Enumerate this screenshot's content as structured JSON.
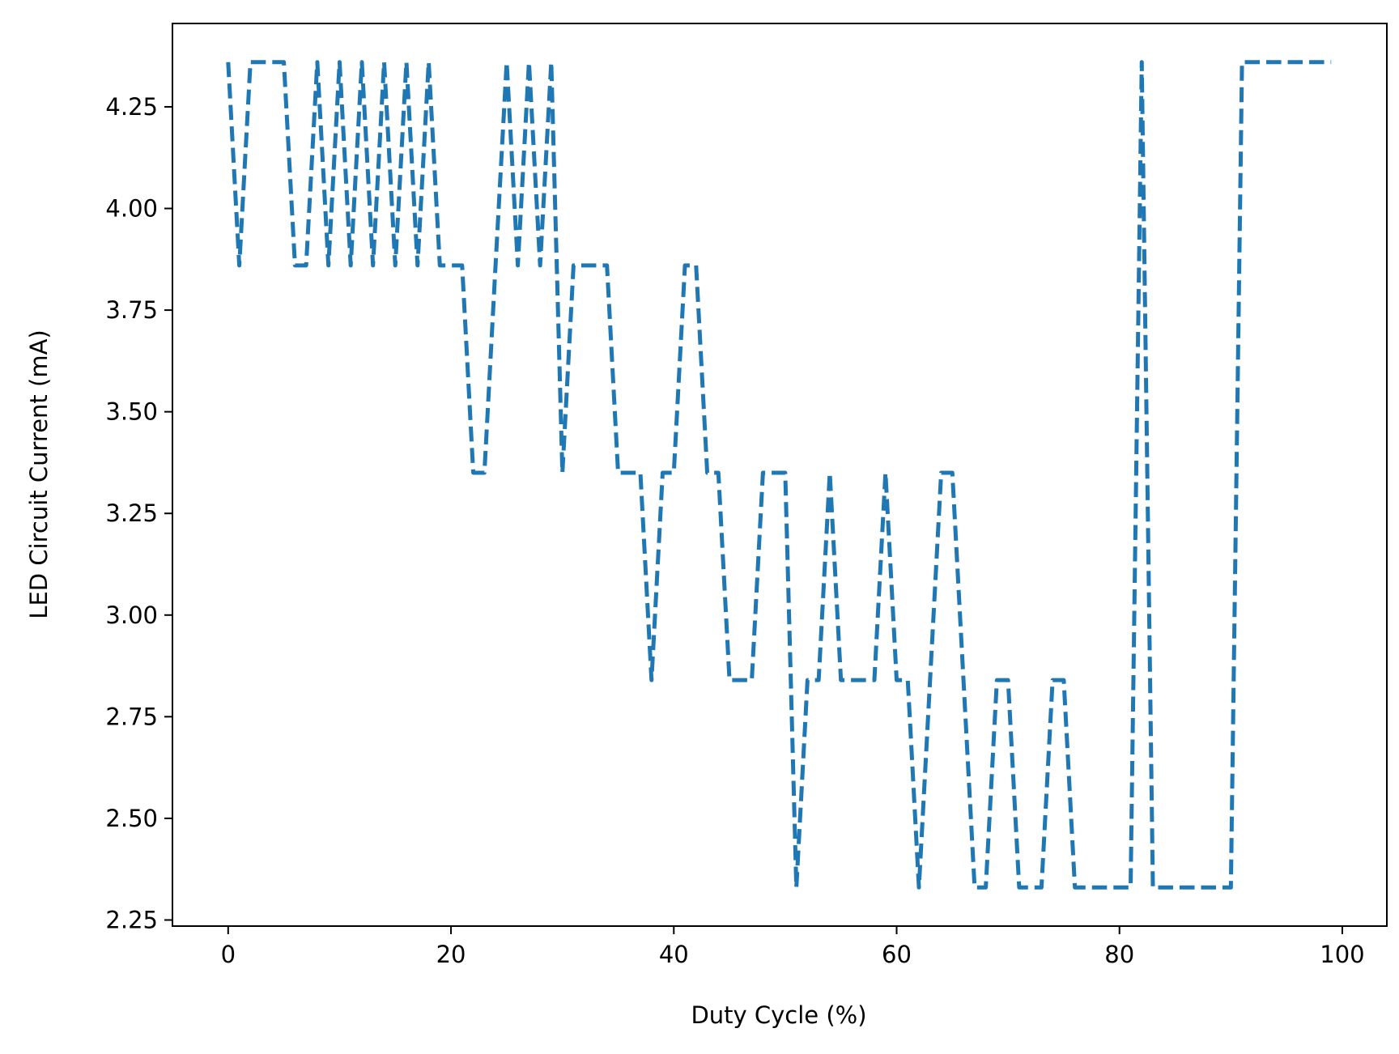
{
  "chart_data": {
    "type": "line",
    "title": "",
    "xlabel": "Duty Cycle (%)",
    "ylabel": "LED Circuit Current (mA)",
    "xlim": [
      -5,
      104
    ],
    "ylim": [
      2.235,
      4.455
    ],
    "x_ticks": [
      0,
      20,
      40,
      60,
      80,
      100
    ],
    "x_tick_labels": [
      "0",
      "20",
      "40",
      "60",
      "80",
      "100"
    ],
    "y_ticks": [
      2.25,
      2.5,
      2.75,
      3.0,
      3.25,
      3.5,
      3.75,
      4.0,
      4.25
    ],
    "y_tick_labels": [
      "2.25",
      "2.50",
      "2.75",
      "3.00",
      "3.25",
      "3.50",
      "3.75",
      "4.00",
      "4.25"
    ],
    "grid": false,
    "legend": "none",
    "series": [
      {
        "color": "#1f77b4",
        "line_style": "dashed",
        "x": [
          0,
          1,
          2,
          3,
          4,
          5,
          6,
          7,
          8,
          9,
          10,
          11,
          12,
          13,
          14,
          15,
          16,
          17,
          18,
          19,
          20,
          21,
          22,
          23,
          24,
          25,
          26,
          27,
          28,
          29,
          30,
          31,
          32,
          33,
          34,
          35,
          36,
          37,
          38,
          39,
          40,
          41,
          42,
          43,
          44,
          45,
          46,
          47,
          48,
          49,
          50,
          51,
          52,
          53,
          54,
          55,
          56,
          57,
          58,
          59,
          60,
          61,
          62,
          63,
          64,
          65,
          66,
          67,
          68,
          69,
          70,
          71,
          72,
          73,
          74,
          75,
          76,
          77,
          78,
          79,
          80,
          81,
          82,
          83,
          84,
          85,
          86,
          87,
          88,
          89,
          90,
          91,
          92,
          93,
          94,
          95,
          96,
          97,
          98,
          99
        ],
        "y": [
          4.36,
          3.86,
          4.36,
          4.36,
          4.36,
          4.36,
          3.86,
          3.86,
          4.36,
          3.86,
          4.36,
          3.86,
          4.36,
          3.86,
          4.36,
          3.86,
          4.36,
          3.86,
          4.36,
          3.86,
          3.86,
          3.86,
          3.35,
          3.35,
          3.86,
          4.36,
          3.86,
          4.36,
          3.86,
          4.36,
          3.35,
          3.86,
          3.86,
          3.86,
          3.86,
          3.35,
          3.35,
          3.35,
          2.84,
          3.35,
          3.35,
          3.86,
          3.86,
          3.35,
          3.35,
          2.84,
          2.84,
          2.84,
          3.35,
          3.35,
          3.35,
          2.33,
          2.84,
          2.84,
          3.35,
          2.84,
          2.84,
          2.84,
          2.84,
          3.35,
          2.84,
          2.84,
          2.33,
          2.84,
          3.35,
          3.35,
          2.84,
          2.33,
          2.33,
          2.84,
          2.84,
          2.33,
          2.33,
          2.33,
          2.84,
          2.84,
          2.33,
          2.33,
          2.33,
          2.33,
          2.33,
          2.33,
          4.36,
          2.33,
          2.33,
          2.33,
          2.33,
          2.33,
          2.33,
          2.33,
          2.33,
          4.36,
          4.36,
          4.36,
          4.36,
          4.36,
          4.36,
          4.36,
          4.36,
          4.36
        ]
      }
    ]
  }
}
